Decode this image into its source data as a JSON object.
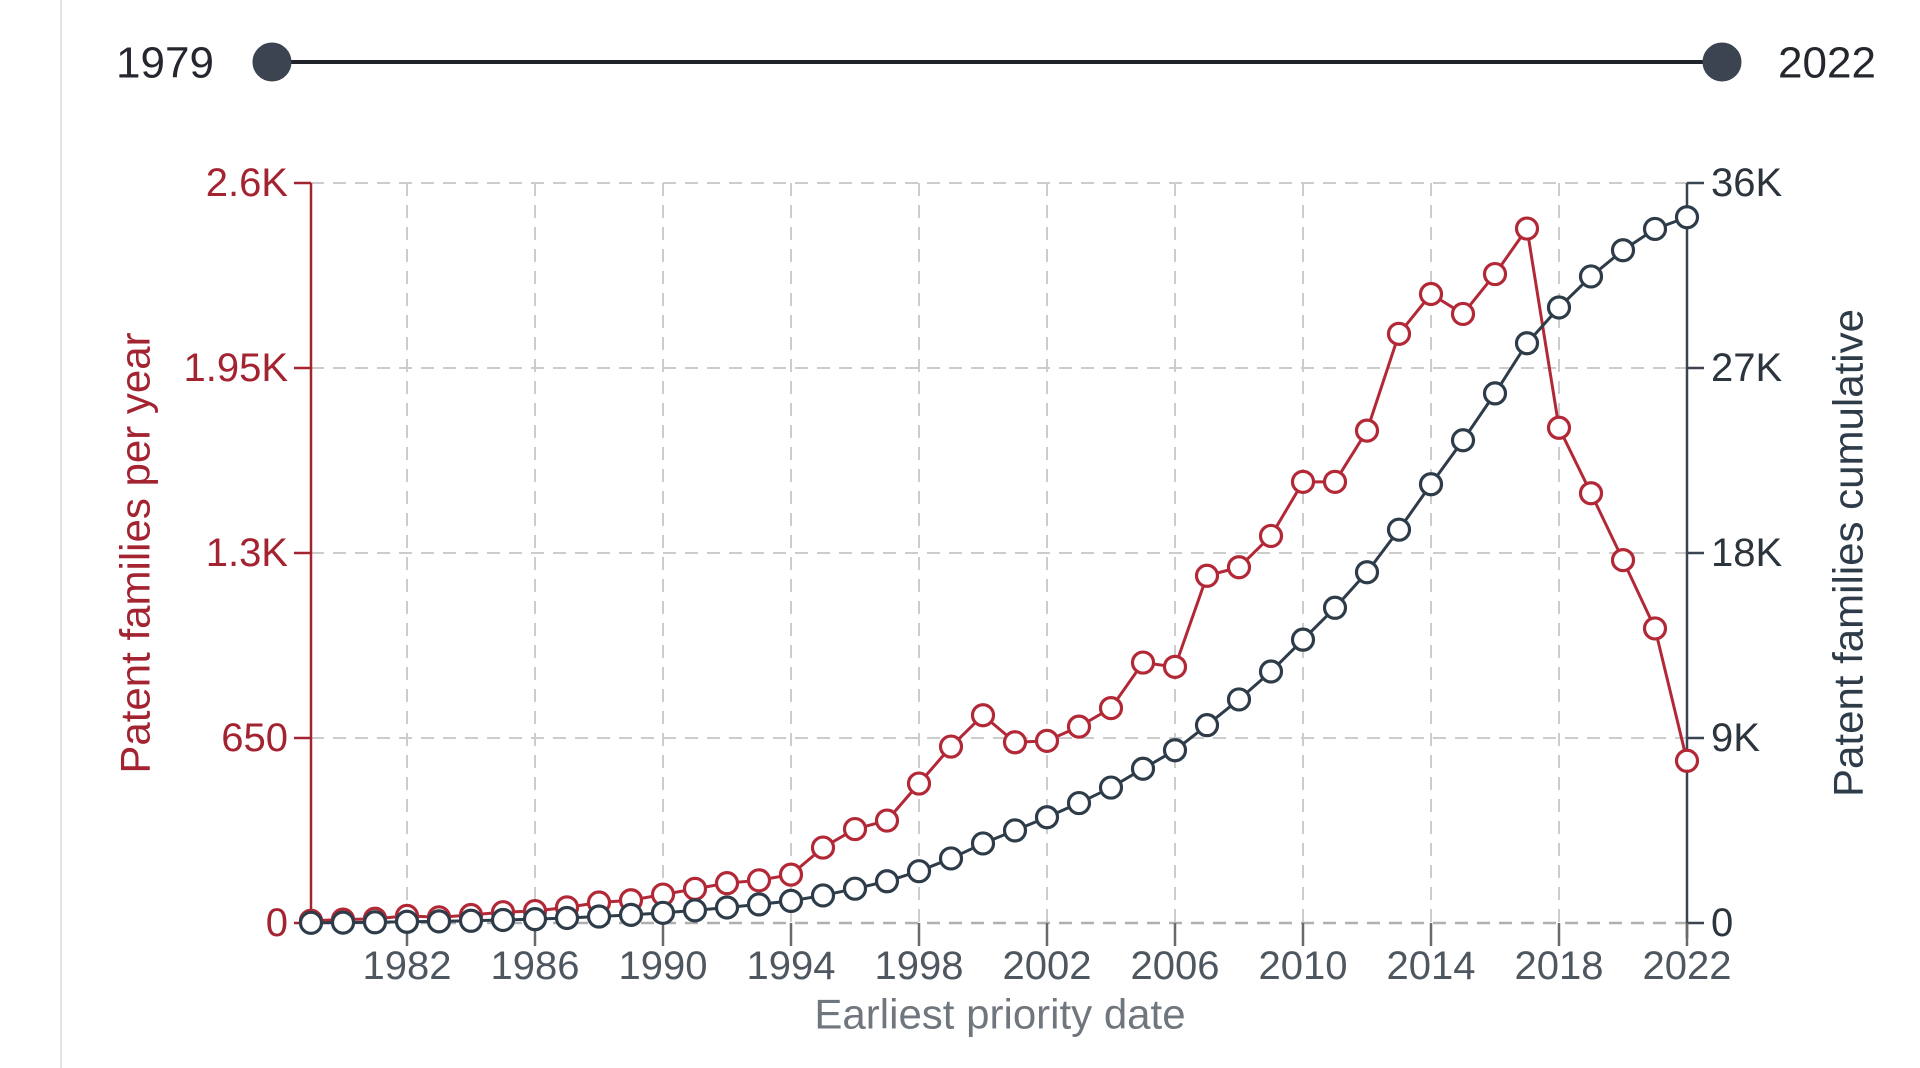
{
  "slider": {
    "min_label": "1979",
    "max_label": "2022",
    "track_color": "#20242a",
    "handle_color": "#3b4450",
    "label_color": "#24282e"
  },
  "chart_data": {
    "type": "line",
    "xlabel": "Earliest priority date",
    "y_left_label": "Patent families per year",
    "y_right_label": "Patent families cumulative",
    "x": [
      1979,
      1980,
      1981,
      1982,
      1983,
      1984,
      1985,
      1986,
      1987,
      1988,
      1989,
      1990,
      1991,
      1992,
      1993,
      1994,
      1995,
      1996,
      1997,
      1998,
      1999,
      2000,
      2001,
      2002,
      2003,
      2004,
      2005,
      2006,
      2007,
      2008,
      2009,
      2010,
      2011,
      2012,
      2013,
      2014,
      2015,
      2016,
      2017,
      2018,
      2019,
      2020,
      2021,
      2022
    ],
    "x_range": [
      1979,
      2022
    ],
    "x_ticks": [
      {
        "value": 1982,
        "label": "1982"
      },
      {
        "value": 1986,
        "label": "1986"
      },
      {
        "value": 1990,
        "label": "1990"
      },
      {
        "value": 1994,
        "label": "1994"
      },
      {
        "value": 1998,
        "label": "1998"
      },
      {
        "value": 2002,
        "label": "2002"
      },
      {
        "value": 2006,
        "label": "2006"
      },
      {
        "value": 2010,
        "label": "2010"
      },
      {
        "value": 2014,
        "label": "2014"
      },
      {
        "value": 2018,
        "label": "2018"
      },
      {
        "value": 2022,
        "label": "2022"
      }
    ],
    "left_axis": {
      "range": [
        0,
        2600
      ],
      "ticks": [
        {
          "value": 0,
          "label": "0"
        },
        {
          "value": 650,
          "label": "650"
        },
        {
          "value": 1300,
          "label": "1.3K"
        },
        {
          "value": 1950,
          "label": "1.95K"
        },
        {
          "value": 2600,
          "label": "2.6K"
        }
      ]
    },
    "right_axis": {
      "range": [
        0,
        36000
      ],
      "ticks": [
        {
          "value": 0,
          "label": "0"
        },
        {
          "value": 9000,
          "label": "9K"
        },
        {
          "value": 18000,
          "label": "18K"
        },
        {
          "value": 27000,
          "label": "27K"
        },
        {
          "value": 36000,
          "label": "36K"
        }
      ]
    },
    "grid": true,
    "legend_position": "none",
    "series": [
      {
        "name": "Patent families per year",
        "axis": "left",
        "color": "#b22837",
        "values": [
          8,
          12,
          15,
          25,
          20,
          28,
          38,
          42,
          55,
          72,
          80,
          100,
          120,
          140,
          150,
          170,
          265,
          330,
          360,
          490,
          620,
          730,
          635,
          640,
          690,
          755,
          915,
          900,
          1220,
          1250,
          1360,
          1550,
          1550,
          1730,
          2070,
          2210,
          2140,
          2280,
          2440,
          1740,
          1510,
          1275,
          1035,
          570
        ]
      },
      {
        "name": "Patent families cumulative",
        "axis": "right",
        "color": "#2e3c49",
        "values": [
          8,
          20,
          35,
          60,
          80,
          108,
          146,
          188,
          243,
          315,
          395,
          495,
          615,
          755,
          905,
          1075,
          1340,
          1670,
          2030,
          2520,
          3140,
          3870,
          4505,
          5145,
          5835,
          6590,
          7505,
          8405,
          9625,
          10875,
          12235,
          13785,
          15335,
          17065,
          19135,
          21345,
          23485,
          25765,
          28205,
          29945,
          31455,
          32730,
          33765,
          34335
        ]
      }
    ]
  },
  "colors": {
    "left_axis": "#a32331",
    "right_axis": "#3a4450",
    "right_tick_label": "#2c343d",
    "x_tick_label": "#4e5760",
    "xlabel_color": "#6f767d",
    "gridline": "#cccccc",
    "zero_line": "#b0b0b0",
    "bottom_tick": "#6a6a6a",
    "marker_fill": "#ffffff"
  }
}
